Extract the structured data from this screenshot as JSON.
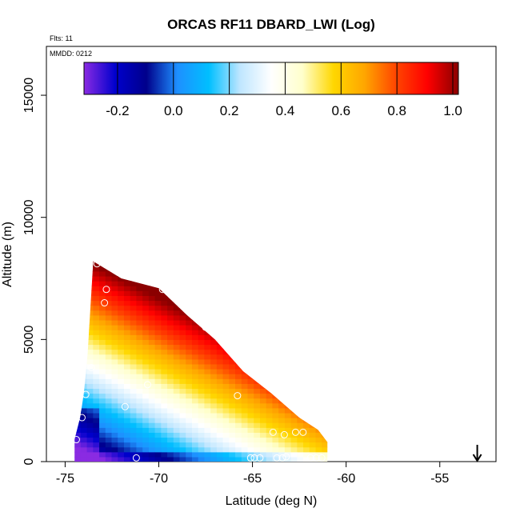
{
  "chart_data": {
    "type": "heatmap",
    "title": "ORCAS RF11 DBARD_LWI (Log)",
    "flights_note": "Flts: 11",
    "date_note": "MMDD: 0212",
    "xlabel": "Latitude (deg N)",
    "ylabel": "Altitude (m)",
    "xlim": [
      -76,
      -52
    ],
    "ylim": [
      0,
      17000
    ],
    "x_ticks": [
      -75,
      -70,
      -65,
      -60,
      -55
    ],
    "y_ticks": [
      0,
      5000,
      10000,
      15000
    ],
    "x_tick_labels": [
      "-75",
      "-70",
      "-65",
      "-60",
      "-55"
    ],
    "y_tick_labels": [
      "0",
      "5000",
      "10000",
      "15000"
    ],
    "colorbar": {
      "range": [
        -0.32,
        1.02
      ],
      "ticks": [
        -0.2,
        0.0,
        0.2,
        0.4,
        0.6,
        0.8,
        1.0
      ],
      "tick_labels": [
        "-0.2",
        "0.0",
        "0.2",
        "0.4",
        "0.6",
        "0.8",
        "1.0"
      ],
      "colors": [
        "#8a2be2",
        "#0000cd",
        "#00008b",
        "#1e90ff",
        "#00bfff",
        "#bfe6ff",
        "#ffffff",
        "#ffffcc",
        "#ffd700",
        "#ffa500",
        "#ff4500",
        "#ff0000",
        "#8b0000"
      ]
    },
    "field_description": "Interpolated log values; low (~-0.3) near surface and southern edge, rising to ~1.0 toward upper-northern boundary",
    "field_bounds": {
      "south_lat": -74.5,
      "north_lat": -61.0,
      "top_altitude_profile": [
        [
          -74.5,
          900
        ],
        [
          -74.2,
          1800
        ],
        [
          -74.0,
          2800
        ],
        [
          -73.8,
          4400
        ],
        [
          -73.5,
          8200
        ],
        [
          -72.0,
          7500
        ],
        [
          -70.0,
          7100
        ],
        [
          -68.5,
          6000
        ],
        [
          -67.0,
          5000
        ],
        [
          -65.5,
          3700
        ],
        [
          -64.0,
          2800
        ],
        [
          -62.5,
          1800
        ],
        [
          -61.5,
          1300
        ],
        [
          -61.0,
          800
        ]
      ],
      "bottom_altitude": 0
    },
    "sample_points": [
      {
        "lat": -74.4,
        "alt": 900
      },
      {
        "lat": -74.1,
        "alt": 1800
      },
      {
        "lat": -73.9,
        "alt": 2750
      },
      {
        "lat": -73.6,
        "alt": 3850
      },
      {
        "lat": -73.3,
        "alt": 8100
      },
      {
        "lat": -72.9,
        "alt": 6500
      },
      {
        "lat": -72.8,
        "alt": 7050
      },
      {
        "lat": -71.8,
        "alt": 2250
      },
      {
        "lat": -71.2,
        "alt": 150
      },
      {
        "lat": -70.6,
        "alt": 3150
      },
      {
        "lat": -69.8,
        "alt": 7050
      },
      {
        "lat": -67.5,
        "alt": 5500
      },
      {
        "lat": -65.8,
        "alt": 2700
      },
      {
        "lat": -65.1,
        "alt": 150
      },
      {
        "lat": -64.9,
        "alt": 150
      },
      {
        "lat": -64.6,
        "alt": 150
      },
      {
        "lat": -63.9,
        "alt": 1200
      },
      {
        "lat": -63.7,
        "alt": 150
      },
      {
        "lat": -63.4,
        "alt": 150
      },
      {
        "lat": -63.3,
        "alt": 1100
      },
      {
        "lat": -63.2,
        "alt": 200
      },
      {
        "lat": -62.7,
        "alt": 1200
      },
      {
        "lat": -62.3,
        "alt": 1200
      },
      {
        "lat": -61.9,
        "alt": 150
      },
      {
        "lat": -61.6,
        "alt": 150
      },
      {
        "lat": -61.3,
        "alt": 150
      }
    ],
    "marker": {
      "lat": -53.0,
      "label": "arrow-down"
    }
  }
}
